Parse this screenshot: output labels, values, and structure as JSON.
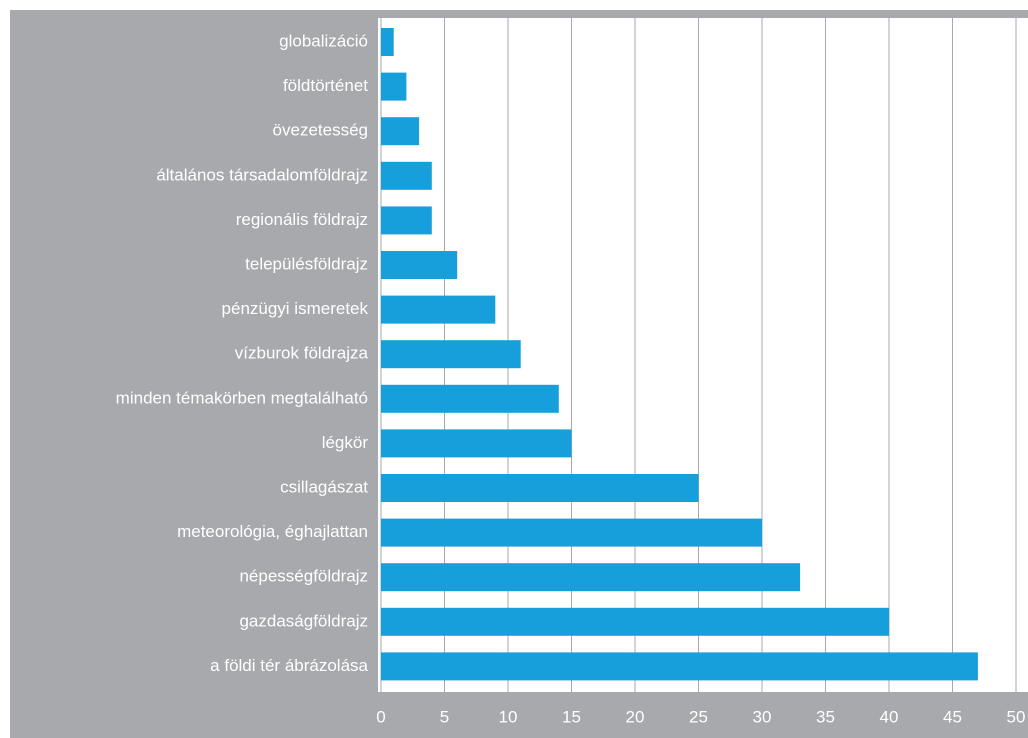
{
  "chart_data": {
    "type": "bar",
    "orientation": "horizontal",
    "categories": [
      "globalizáció",
      "földtörténet",
      "övezetesség",
      "általános társadalomföldrajz",
      "regionális földrajz",
      "településföldrajz",
      "pénzügyi ismeretek",
      "vízburok földrajza",
      "minden témakörben megtalálható",
      "légkör",
      "csillagászat",
      "meteorológia, éghajlattan",
      "népességföldrajz",
      "gazdaságföldrajz",
      "a földi tér ábrázolása"
    ],
    "values": [
      1,
      2,
      3,
      4,
      4,
      6,
      9,
      11,
      14,
      15,
      25,
      30,
      33,
      40,
      47
    ],
    "color": "#179fdb",
    "xlim": [
      0,
      50
    ],
    "xticks": [
      0,
      5,
      10,
      15,
      20,
      25,
      30,
      35,
      40,
      45,
      50
    ],
    "grid": true
  }
}
